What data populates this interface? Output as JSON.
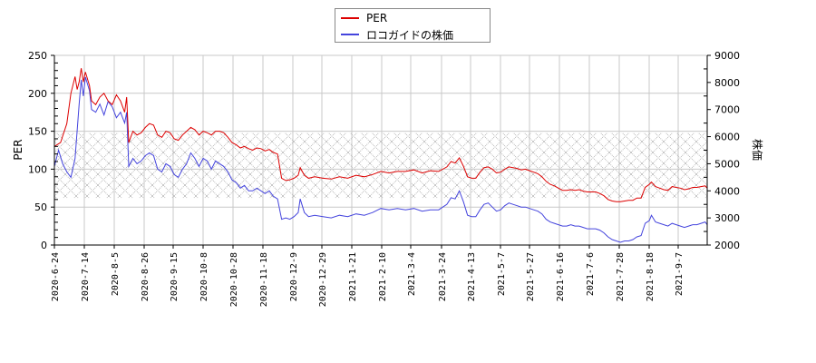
{
  "legend": {
    "items": [
      {
        "label": "PER",
        "color": "#dd0000"
      },
      {
        "label": "ロコガイドの株価",
        "color": "#4444dd"
      }
    ]
  },
  "axes": {
    "left_title": "PER",
    "right_title": "株価",
    "left_ticks": [
      0,
      50,
      100,
      150,
      200,
      250
    ],
    "right_ticks": [
      2000,
      3000,
      4000,
      5000,
      6000,
      7000,
      8000,
      9000
    ],
    "x_ticks": [
      "2020-6-24",
      "2020-7-14",
      "2020-8-5",
      "2020-8-26",
      "2020-9-15",
      "2020-10-8",
      "2020-10-28",
      "2020-11-18",
      "2020-12-9",
      "2020-12-29",
      "2021-1-21",
      "2021-2-10",
      "2021-3-4",
      "2021-3-24",
      "2021-4-13",
      "2021-5-7",
      "2021-5-27",
      "2021-6-16",
      "2021-7-6",
      "2021-7-28",
      "2021-8-18",
      "2021-9-7"
    ]
  },
  "chart_data": {
    "type": "line",
    "title": "",
    "xlabel": "",
    "ylabel": "PER",
    "y2label": "株価",
    "ylim": [
      0,
      250
    ],
    "y2lim": [
      2000,
      9000
    ],
    "grid": true,
    "legend_position": "top-center",
    "shaded_band": {
      "axis": "left",
      "from": 62,
      "to": 148,
      "pattern": "crosshatch"
    },
    "categories": [
      "2020-6-24",
      "2020-7-14",
      "2020-8-5",
      "2020-8-26",
      "2020-9-15",
      "2020-10-8",
      "2020-10-28",
      "2020-11-18",
      "2020-12-9",
      "2020-12-29",
      "2021-1-21",
      "2021-2-10",
      "2021-3-4",
      "2021-3-24",
      "2021-4-13",
      "2021-5-7",
      "2021-5-27",
      "2021-6-16",
      "2021-7-6",
      "2021-7-28",
      "2021-8-18",
      "2021-9-7"
    ],
    "series": [
      {
        "name": "PER",
        "axis": "left",
        "color": "#dd0000",
        "points": [
          [
            0,
            130
          ],
          [
            3,
            135
          ],
          [
            6,
            160
          ],
          [
            8,
            200
          ],
          [
            10,
            222
          ],
          [
            11,
            205
          ],
          [
            12,
            215
          ],
          [
            13,
            233
          ],
          [
            14,
            215
          ],
          [
            15,
            228
          ],
          [
            17,
            210
          ],
          [
            18,
            190
          ],
          [
            20,
            185
          ],
          [
            22,
            195
          ],
          [
            24,
            200
          ],
          [
            26,
            190
          ],
          [
            28,
            185
          ],
          [
            30,
            198
          ],
          [
            32,
            190
          ],
          [
            34,
            175
          ],
          [
            35,
            195
          ],
          [
            36,
            135
          ],
          [
            38,
            150
          ],
          [
            40,
            145
          ],
          [
            42,
            148
          ],
          [
            44,
            155
          ],
          [
            46,
            160
          ],
          [
            48,
            158
          ],
          [
            50,
            145
          ],
          [
            52,
            142
          ],
          [
            54,
            150
          ],
          [
            56,
            148
          ],
          [
            58,
            140
          ],
          [
            60,
            138
          ],
          [
            62,
            145
          ],
          [
            64,
            150
          ],
          [
            66,
            155
          ],
          [
            68,
            152
          ],
          [
            70,
            145
          ],
          [
            72,
            150
          ],
          [
            74,
            148
          ],
          [
            76,
            145
          ],
          [
            78,
            150
          ],
          [
            80,
            150
          ],
          [
            82,
            148
          ],
          [
            84,
            142
          ],
          [
            86,
            135
          ],
          [
            88,
            132
          ],
          [
            90,
            128
          ],
          [
            92,
            130
          ],
          [
            94,
            127
          ],
          [
            96,
            125
          ],
          [
            98,
            128
          ],
          [
            100,
            127
          ],
          [
            102,
            124
          ],
          [
            104,
            126
          ],
          [
            106,
            122
          ],
          [
            108,
            120
          ],
          [
            110,
            88
          ],
          [
            112,
            85
          ],
          [
            114,
            86
          ],
          [
            116,
            88
          ],
          [
            118,
            92
          ],
          [
            119,
            102
          ],
          [
            121,
            92
          ],
          [
            123,
            88
          ],
          [
            126,
            90
          ],
          [
            130,
            88
          ],
          [
            134,
            87
          ],
          [
            138,
            90
          ],
          [
            142,
            88
          ],
          [
            146,
            92
          ],
          [
            150,
            90
          ],
          [
            154,
            93
          ],
          [
            158,
            97
          ],
          [
            162,
            95
          ],
          [
            166,
            97
          ],
          [
            170,
            97
          ],
          [
            174,
            99
          ],
          [
            178,
            95
          ],
          [
            182,
            98
          ],
          [
            186,
            97
          ],
          [
            190,
            103
          ],
          [
            192,
            110
          ],
          [
            194,
            108
          ],
          [
            196,
            115
          ],
          [
            198,
            104
          ],
          [
            200,
            90
          ],
          [
            202,
            88
          ],
          [
            204,
            88
          ],
          [
            206,
            96
          ],
          [
            208,
            102
          ],
          [
            210,
            103
          ],
          [
            212,
            100
          ],
          [
            214,
            95
          ],
          [
            216,
            96
          ],
          [
            218,
            100
          ],
          [
            220,
            103
          ],
          [
            222,
            102
          ],
          [
            224,
            101
          ],
          [
            226,
            99
          ],
          [
            228,
            100
          ],
          [
            230,
            98
          ],
          [
            232,
            96
          ],
          [
            234,
            94
          ],
          [
            236,
            90
          ],
          [
            238,
            84
          ],
          [
            240,
            80
          ],
          [
            242,
            78
          ],
          [
            244,
            75
          ],
          [
            246,
            72
          ],
          [
            248,
            72
          ],
          [
            250,
            73
          ],
          [
            252,
            72
          ],
          [
            254,
            73
          ],
          [
            256,
            71
          ],
          [
            258,
            70
          ],
          [
            260,
            70
          ],
          [
            262,
            70
          ],
          [
            264,
            68
          ],
          [
            266,
            65
          ],
          [
            268,
            60
          ],
          [
            270,
            58
          ],
          [
            272,
            57
          ],
          [
            274,
            57
          ],
          [
            276,
            58
          ],
          [
            278,
            59
          ],
          [
            280,
            59
          ],
          [
            282,
            62
          ],
          [
            284,
            62
          ],
          [
            286,
            76
          ],
          [
            288,
            80
          ],
          [
            289,
            83
          ],
          [
            291,
            77
          ],
          [
            293,
            75
          ],
          [
            295,
            73
          ],
          [
            297,
            72
          ],
          [
            299,
            77
          ],
          [
            301,
            76
          ],
          [
            303,
            75
          ],
          [
            305,
            73
          ],
          [
            307,
            74
          ],
          [
            309,
            76
          ],
          [
            311,
            76
          ],
          [
            313,
            77
          ],
          [
            315,
            78
          ],
          [
            316,
            75
          ]
        ]
      },
      {
        "name": "ロコガイドの株価",
        "axis": "right",
        "color": "#4444dd",
        "points": [
          [
            0,
            4900
          ],
          [
            2,
            5500
          ],
          [
            4,
            5000
          ],
          [
            6,
            4700
          ],
          [
            8,
            4500
          ],
          [
            10,
            5200
          ],
          [
            12,
            7200
          ],
          [
            13,
            8100
          ],
          [
            14,
            7500
          ],
          [
            15,
            8200
          ],
          [
            17,
            7700
          ],
          [
            18,
            7000
          ],
          [
            20,
            6900
          ],
          [
            22,
            7200
          ],
          [
            24,
            6800
          ],
          [
            26,
            7300
          ],
          [
            28,
            7100
          ],
          [
            30,
            6700
          ],
          [
            32,
            6900
          ],
          [
            34,
            6500
          ],
          [
            35,
            6900
          ],
          [
            36,
            4900
          ],
          [
            38,
            5200
          ],
          [
            40,
            5000
          ],
          [
            42,
            5100
          ],
          [
            44,
            5300
          ],
          [
            46,
            5400
          ],
          [
            48,
            5300
          ],
          [
            50,
            4800
          ],
          [
            52,
            4700
          ],
          [
            54,
            5000
          ],
          [
            56,
            4900
          ],
          [
            58,
            4600
          ],
          [
            60,
            4500
          ],
          [
            62,
            4800
          ],
          [
            64,
            5000
          ],
          [
            66,
            5400
          ],
          [
            68,
            5200
          ],
          [
            70,
            4900
          ],
          [
            72,
            5200
          ],
          [
            74,
            5100
          ],
          [
            76,
            4800
          ],
          [
            78,
            5100
          ],
          [
            80,
            5000
          ],
          [
            82,
            4900
          ],
          [
            84,
            4700
          ],
          [
            86,
            4400
          ],
          [
            88,
            4300
          ],
          [
            90,
            4100
          ],
          [
            92,
            4200
          ],
          [
            94,
            4000
          ],
          [
            96,
            4000
          ],
          [
            98,
            4100
          ],
          [
            100,
            4000
          ],
          [
            102,
            3900
          ],
          [
            104,
            4000
          ],
          [
            106,
            3800
          ],
          [
            108,
            3700
          ],
          [
            110,
            2950
          ],
          [
            112,
            3000
          ],
          [
            114,
            2950
          ],
          [
            116,
            3050
          ],
          [
            118,
            3200
          ],
          [
            119,
            3700
          ],
          [
            121,
            3200
          ],
          [
            123,
            3050
          ],
          [
            126,
            3100
          ],
          [
            130,
            3050
          ],
          [
            134,
            3000
          ],
          [
            138,
            3100
          ],
          [
            142,
            3050
          ],
          [
            146,
            3150
          ],
          [
            150,
            3100
          ],
          [
            154,
            3200
          ],
          [
            158,
            3350
          ],
          [
            162,
            3300
          ],
          [
            166,
            3350
          ],
          [
            170,
            3300
          ],
          [
            174,
            3350
          ],
          [
            178,
            3250
          ],
          [
            182,
            3300
          ],
          [
            186,
            3300
          ],
          [
            190,
            3500
          ],
          [
            192,
            3750
          ],
          [
            194,
            3700
          ],
          [
            196,
            4000
          ],
          [
            198,
            3600
          ],
          [
            200,
            3100
          ],
          [
            202,
            3050
          ],
          [
            204,
            3050
          ],
          [
            206,
            3300
          ],
          [
            208,
            3500
          ],
          [
            210,
            3550
          ],
          [
            212,
            3400
          ],
          [
            214,
            3250
          ],
          [
            216,
            3300
          ],
          [
            218,
            3450
          ],
          [
            220,
            3550
          ],
          [
            222,
            3500
          ],
          [
            224,
            3450
          ],
          [
            226,
            3400
          ],
          [
            228,
            3400
          ],
          [
            230,
            3350
          ],
          [
            232,
            3300
          ],
          [
            234,
            3250
          ],
          [
            236,
            3150
          ],
          [
            238,
            2950
          ],
          [
            240,
            2850
          ],
          [
            242,
            2800
          ],
          [
            244,
            2750
          ],
          [
            246,
            2700
          ],
          [
            248,
            2700
          ],
          [
            250,
            2750
          ],
          [
            252,
            2700
          ],
          [
            254,
            2700
          ],
          [
            256,
            2650
          ],
          [
            258,
            2600
          ],
          [
            260,
            2600
          ],
          [
            262,
            2600
          ],
          [
            264,
            2550
          ],
          [
            266,
            2450
          ],
          [
            268,
            2300
          ],
          [
            270,
            2200
          ],
          [
            272,
            2150
          ],
          [
            274,
            2100
          ],
          [
            276,
            2150
          ],
          [
            278,
            2150
          ],
          [
            280,
            2200
          ],
          [
            282,
            2300
          ],
          [
            284,
            2350
          ],
          [
            286,
            2800
          ],
          [
            288,
            2900
          ],
          [
            289,
            3100
          ],
          [
            291,
            2850
          ],
          [
            293,
            2800
          ],
          [
            295,
            2750
          ],
          [
            297,
            2700
          ],
          [
            299,
            2800
          ],
          [
            301,
            2750
          ],
          [
            303,
            2700
          ],
          [
            305,
            2650
          ],
          [
            307,
            2700
          ],
          [
            309,
            2750
          ],
          [
            311,
            2750
          ],
          [
            313,
            2800
          ],
          [
            315,
            2850
          ],
          [
            316,
            2750
          ]
        ]
      }
    ]
  }
}
